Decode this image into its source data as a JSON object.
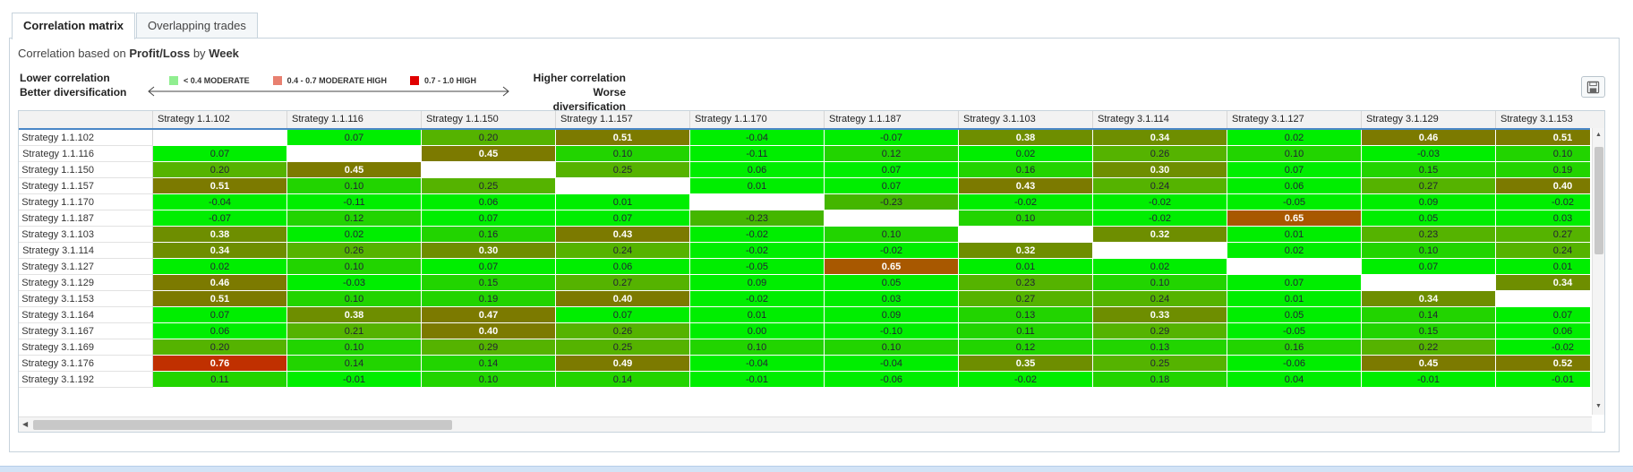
{
  "tabs": [
    {
      "label": "Correlation matrix",
      "active": true
    },
    {
      "label": "Overlapping trades",
      "active": false
    }
  ],
  "description": {
    "prefix": "Correlation based on ",
    "metric": "Profit/Loss",
    "middle": " by ",
    "period": "Week"
  },
  "legend": {
    "left_line1": "Lower correlation",
    "left_line2": "Better diversification",
    "right_line1": "Higher correlation",
    "right_line2": "Worse diversification",
    "items": [
      {
        "label": "< 0.4 MODERATE",
        "color": "#90ee90"
      },
      {
        "label": "0.4 - 0.7 MODERATE HIGH",
        "color": "#e88070"
      },
      {
        "label": "0.7 - 1.0 HIGH",
        "color": "#e00000"
      }
    ]
  },
  "save_icon": "save-icon",
  "columns": [
    "Strategy 1.1.102",
    "Strategy 1.1.116",
    "Strategy 1.1.150",
    "Strategy 1.1.157",
    "Strategy 1.1.170",
    "Strategy 1.1.187",
    "Strategy 3.1.103",
    "Strategy 3.1.114",
    "Strategy 3.1.127",
    "Strategy 3.1.129",
    "Strategy 3.1.153"
  ],
  "rows": [
    {
      "label": "Strategy 1.1.102",
      "values": [
        null,
        "0.07",
        "0.20",
        "0.51",
        "-0.04",
        "-0.07",
        "0.38",
        "0.34",
        "0.02",
        "0.46",
        "0.51"
      ]
    },
    {
      "label": "Strategy 1.1.116",
      "values": [
        "0.07",
        null,
        "0.45",
        "0.10",
        "-0.11",
        "0.12",
        "0.02",
        "0.26",
        "0.10",
        "-0.03",
        "0.10"
      ]
    },
    {
      "label": "Strategy 1.1.150",
      "values": [
        "0.20",
        "0.45",
        null,
        "0.25",
        "0.06",
        "0.07",
        "0.16",
        "0.30",
        "0.07",
        "0.15",
        "0.19"
      ]
    },
    {
      "label": "Strategy 1.1.157",
      "values": [
        "0.51",
        "0.10",
        "0.25",
        null,
        "0.01",
        "0.07",
        "0.43",
        "0.24",
        "0.06",
        "0.27",
        "0.40"
      ]
    },
    {
      "label": "Strategy 1.1.170",
      "values": [
        "-0.04",
        "-0.11",
        "0.06",
        "0.01",
        null,
        "-0.23",
        "-0.02",
        "-0.02",
        "-0.05",
        "0.09",
        "-0.02"
      ]
    },
    {
      "label": "Strategy 1.1.187",
      "values": [
        "-0.07",
        "0.12",
        "0.07",
        "0.07",
        "-0.23",
        null,
        "0.10",
        "-0.02",
        "0.65",
        "0.05",
        "0.03"
      ]
    },
    {
      "label": "Strategy 3.1.103",
      "values": [
        "0.38",
        "0.02",
        "0.16",
        "0.43",
        "-0.02",
        "0.10",
        null,
        "0.32",
        "0.01",
        "0.23",
        "0.27"
      ]
    },
    {
      "label": "Strategy 3.1.114",
      "values": [
        "0.34",
        "0.26",
        "0.30",
        "0.24",
        "-0.02",
        "-0.02",
        "0.32",
        null,
        "0.02",
        "0.10",
        "0.24"
      ]
    },
    {
      "label": "Strategy 3.1.127",
      "values": [
        "0.02",
        "0.10",
        "0.07",
        "0.06",
        "-0.05",
        "0.65",
        "0.01",
        "0.02",
        null,
        "0.07",
        "0.01"
      ]
    },
    {
      "label": "Strategy 3.1.129",
      "values": [
        "0.46",
        "-0.03",
        "0.15",
        "0.27",
        "0.09",
        "0.05",
        "0.23",
        "0.10",
        "0.07",
        null,
        "0.34"
      ]
    },
    {
      "label": "Strategy 3.1.153",
      "values": [
        "0.51",
        "0.10",
        "0.19",
        "0.40",
        "-0.02",
        "0.03",
        "0.27",
        "0.24",
        "0.01",
        "0.34",
        null
      ]
    },
    {
      "label": "Strategy 3.1.164",
      "values": [
        "0.07",
        "0.38",
        "0.47",
        "0.07",
        "0.01",
        "0.09",
        "0.13",
        "0.33",
        "0.05",
        "0.14",
        "0.07"
      ]
    },
    {
      "label": "Strategy 3.1.167",
      "values": [
        "0.06",
        "0.21",
        "0.40",
        "0.26",
        "0.00",
        "-0.10",
        "0.11",
        "0.29",
        "-0.05",
        "0.15",
        "0.06"
      ]
    },
    {
      "label": "Strategy 3.1.169",
      "values": [
        "0.20",
        "0.10",
        "0.29",
        "0.25",
        "0.10",
        "0.10",
        "0.12",
        "0.13",
        "0.16",
        "0.22",
        "-0.02"
      ]
    },
    {
      "label": "Strategy 3.1.176",
      "values": [
        "0.76",
        "0.14",
        "0.14",
        "0.49",
        "-0.04",
        "-0.04",
        "0.35",
        "0.25",
        "-0.06",
        "0.45",
        "0.52"
      ]
    },
    {
      "label": "Strategy 3.1.192",
      "values": [
        "0.11",
        "-0.01",
        "0.10",
        "0.14",
        "-0.01",
        "-0.06",
        "-0.02",
        "0.18",
        "0.04",
        "-0.01",
        "-0.01"
      ]
    }
  ],
  "colors": {
    "accent": "#4a87c7",
    "low_bright": "#00ee00",
    "low_mid": "#22d400",
    "low_dark": "#55b300",
    "moderate_high": "#7c7a00",
    "high": "#a85800",
    "very_high": "#c03000"
  }
}
